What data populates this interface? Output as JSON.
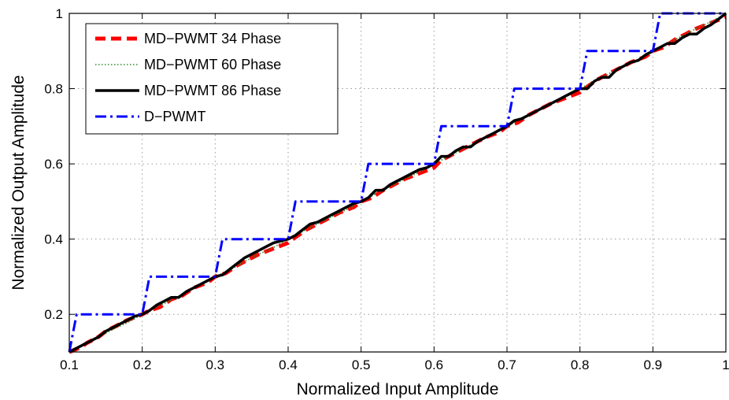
{
  "chart_data": {
    "type": "line",
    "title": "",
    "xlabel": "Normalized Input Amplitude",
    "ylabel": "Normalized Output Amplitude",
    "xlim": [
      0.1,
      1.0
    ],
    "ylim": [
      0.1,
      1.0
    ],
    "xticks": [
      0.1,
      0.2,
      0.3,
      0.4,
      0.5,
      0.6,
      0.7,
      0.8,
      0.9,
      1.0
    ],
    "xtick_labels": [
      "0.1",
      "0.2",
      "0.3",
      "0.4",
      "0.5",
      "0.6",
      "0.7",
      "0.8",
      "0.9",
      "1"
    ],
    "yticks": [
      0.2,
      0.4,
      0.6,
      0.8,
      1.0
    ],
    "ytick_labels": [
      "0.2",
      "0.4",
      "0.6",
      "0.8",
      "1"
    ],
    "grid": true,
    "legend_position": "top-left",
    "series": [
      {
        "name": "MD−PWMT 34 Phase",
        "color": "#ff0000",
        "style": "dashed",
        "x": [
          0.1,
          0.115,
          0.125,
          0.14,
          0.15,
          0.165,
          0.18,
          0.2,
          0.21,
          0.225,
          0.24,
          0.255,
          0.27,
          0.29,
          0.3,
          0.315,
          0.33,
          0.345,
          0.36,
          0.38,
          0.4,
          0.41,
          0.425,
          0.44,
          0.455,
          0.47,
          0.49,
          0.5,
          0.515,
          0.53,
          0.545,
          0.56,
          0.58,
          0.6,
          0.61,
          0.625,
          0.64,
          0.655,
          0.67,
          0.69,
          0.7,
          0.715,
          0.73,
          0.745,
          0.76,
          0.78,
          0.8,
          0.81,
          0.825,
          0.84,
          0.855,
          0.87,
          0.89,
          0.9,
          0.915,
          0.93,
          0.945,
          0.96,
          0.98,
          1.0
        ],
        "y": [
          0.1,
          0.112,
          0.125,
          0.14,
          0.155,
          0.17,
          0.185,
          0.2,
          0.21,
          0.22,
          0.24,
          0.25,
          0.27,
          0.285,
          0.3,
          0.31,
          0.33,
          0.345,
          0.36,
          0.375,
          0.39,
          0.405,
          0.425,
          0.44,
          0.455,
          0.47,
          0.485,
          0.5,
          0.51,
          0.53,
          0.545,
          0.56,
          0.575,
          0.59,
          0.61,
          0.625,
          0.64,
          0.655,
          0.67,
          0.685,
          0.7,
          0.71,
          0.73,
          0.745,
          0.76,
          0.775,
          0.79,
          0.805,
          0.825,
          0.84,
          0.855,
          0.87,
          0.885,
          0.9,
          0.91,
          0.93,
          0.945,
          0.96,
          0.975,
          0.99
        ]
      },
      {
        "name": "MD−PWMT 60 Phase",
        "color": "#2e8b2e",
        "style": "dotted",
        "x": [
          0.1,
          0.12,
          0.14,
          0.16,
          0.18,
          0.2,
          0.22,
          0.24,
          0.26,
          0.28,
          0.3,
          0.32,
          0.34,
          0.36,
          0.38,
          0.4,
          0.42,
          0.44,
          0.46,
          0.48,
          0.5,
          0.52,
          0.54,
          0.56,
          0.58,
          0.6,
          0.62,
          0.64,
          0.66,
          0.68,
          0.7,
          0.72,
          0.74,
          0.76,
          0.78,
          0.8,
          0.82,
          0.84,
          0.86,
          0.88,
          0.9,
          0.92,
          0.94,
          0.96,
          0.98,
          1.0
        ],
        "y": [
          0.1,
          0.118,
          0.14,
          0.16,
          0.178,
          0.2,
          0.22,
          0.238,
          0.26,
          0.28,
          0.3,
          0.318,
          0.34,
          0.36,
          0.378,
          0.4,
          0.42,
          0.44,
          0.46,
          0.478,
          0.5,
          0.52,
          0.54,
          0.56,
          0.578,
          0.6,
          0.62,
          0.64,
          0.66,
          0.678,
          0.7,
          0.72,
          0.74,
          0.76,
          0.778,
          0.8,
          0.82,
          0.84,
          0.86,
          0.878,
          0.9,
          0.92,
          0.94,
          0.96,
          0.978,
          1.0
        ]
      },
      {
        "name": "MD−PWMT 86 Phase",
        "color": "#000000",
        "style": "solid",
        "x": [
          0.1,
          0.11,
          0.12,
          0.13,
          0.14,
          0.15,
          0.16,
          0.17,
          0.18,
          0.19,
          0.2,
          0.21,
          0.22,
          0.23,
          0.24,
          0.25,
          0.26,
          0.27,
          0.28,
          0.29,
          0.3,
          0.31,
          0.32,
          0.33,
          0.34,
          0.35,
          0.36,
          0.37,
          0.38,
          0.39,
          0.4,
          0.41,
          0.42,
          0.43,
          0.44,
          0.45,
          0.46,
          0.47,
          0.48,
          0.49,
          0.5,
          0.51,
          0.52,
          0.53,
          0.54,
          0.55,
          0.56,
          0.57,
          0.58,
          0.59,
          0.6,
          0.61,
          0.62,
          0.63,
          0.64,
          0.65,
          0.66,
          0.67,
          0.68,
          0.69,
          0.7,
          0.71,
          0.72,
          0.73,
          0.74,
          0.75,
          0.76,
          0.77,
          0.78,
          0.79,
          0.8,
          0.81,
          0.82,
          0.83,
          0.84,
          0.85,
          0.86,
          0.87,
          0.88,
          0.89,
          0.9,
          0.91,
          0.92,
          0.93,
          0.94,
          0.95,
          0.96,
          0.97,
          0.98,
          0.99,
          1.0
        ],
        "y": [
          0.1,
          0.11,
          0.12,
          0.13,
          0.14,
          0.155,
          0.165,
          0.175,
          0.185,
          0.195,
          0.2,
          0.21,
          0.225,
          0.235,
          0.245,
          0.245,
          0.26,
          0.27,
          0.28,
          0.29,
          0.3,
          0.305,
          0.32,
          0.335,
          0.35,
          0.36,
          0.37,
          0.38,
          0.39,
          0.395,
          0.4,
          0.41,
          0.425,
          0.44,
          0.445,
          0.455,
          0.465,
          0.475,
          0.485,
          0.495,
          0.5,
          0.51,
          0.53,
          0.53,
          0.545,
          0.555,
          0.565,
          0.575,
          0.585,
          0.59,
          0.6,
          0.62,
          0.62,
          0.635,
          0.645,
          0.645,
          0.66,
          0.67,
          0.68,
          0.69,
          0.7,
          0.715,
          0.72,
          0.73,
          0.74,
          0.75,
          0.76,
          0.77,
          0.78,
          0.79,
          0.8,
          0.8,
          0.82,
          0.83,
          0.83,
          0.85,
          0.86,
          0.87,
          0.875,
          0.89,
          0.9,
          0.91,
          0.92,
          0.92,
          0.935,
          0.945,
          0.945,
          0.96,
          0.97,
          0.985,
          1.0
        ]
      },
      {
        "name": "D−PWMT",
        "color": "#0000ff",
        "style": "dashdot",
        "x": [
          0.1,
          0.11,
          0.2,
          0.21,
          0.3,
          0.31,
          0.4,
          0.41,
          0.5,
          0.51,
          0.6,
          0.61,
          0.7,
          0.71,
          0.8,
          0.81,
          0.9,
          0.91,
          1.0
        ],
        "y": [
          0.1,
          0.2,
          0.2,
          0.3,
          0.3,
          0.4,
          0.4,
          0.5,
          0.5,
          0.6,
          0.6,
          0.7,
          0.7,
          0.8,
          0.8,
          0.9,
          0.9,
          1.0,
          1.0
        ]
      }
    ]
  }
}
